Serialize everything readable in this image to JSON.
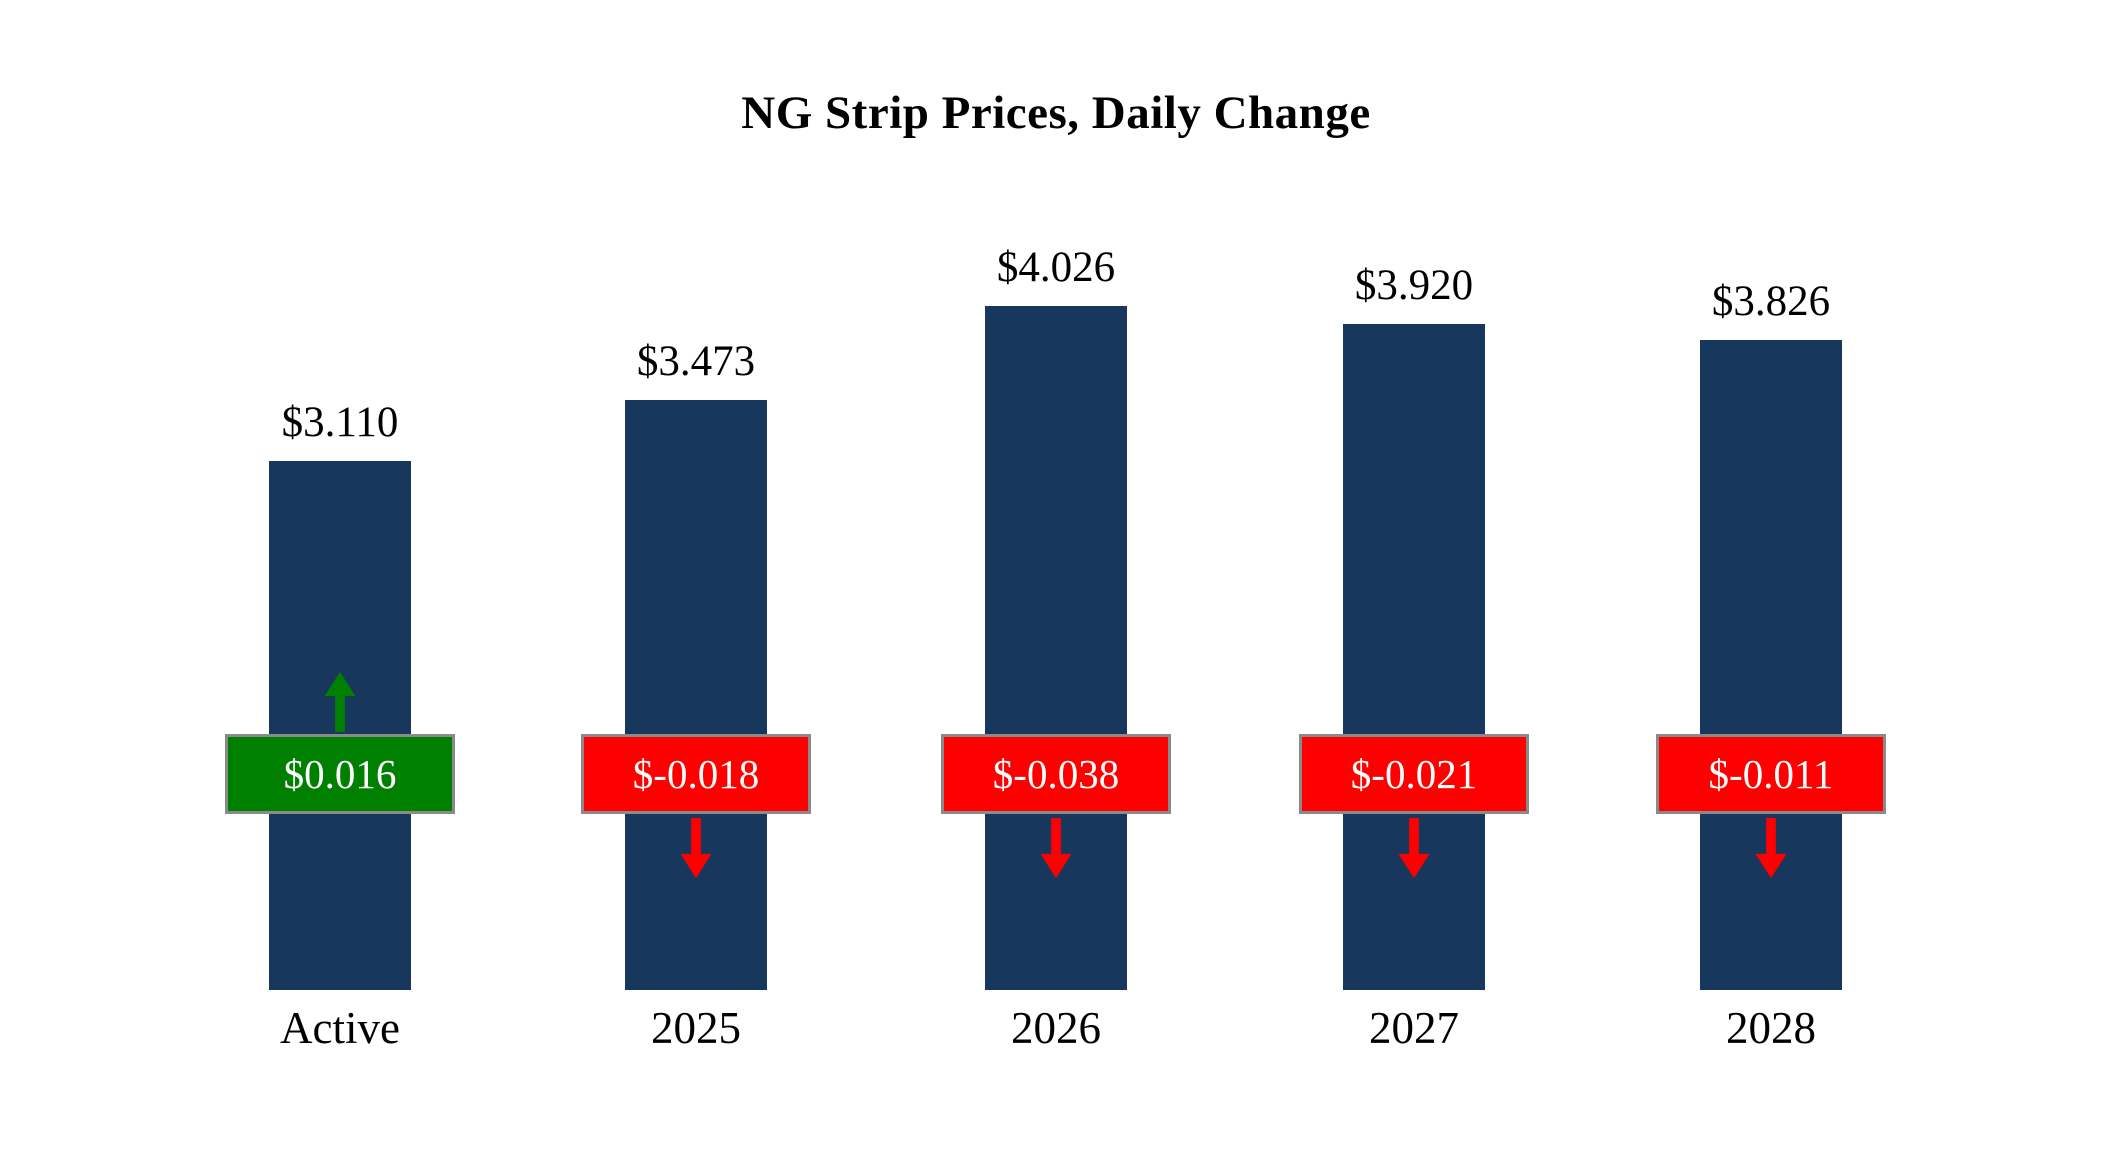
{
  "title": "NG Strip Prices, Daily Change",
  "chart_data": {
    "type": "bar",
    "title": "NG Strip Prices, Daily Change",
    "categories": [
      "Active",
      "2025",
      "2026",
      "2027",
      "2028"
    ],
    "series": [
      {
        "name": "Strip Price",
        "values": [
          3.11,
          3.473,
          4.026,
          3.92,
          3.826
        ]
      },
      {
        "name": "Daily Change",
        "values": [
          0.016,
          -0.018,
          -0.038,
          -0.021,
          -0.011
        ]
      }
    ],
    "bar_labels": [
      "$3.110",
      "$3.473",
      "$4.026",
      "$3.920",
      "$3.826"
    ],
    "change_labels": [
      "$0.016",
      "$-0.018",
      "$-0.038",
      "$-0.021",
      "$-0.011"
    ],
    "change_directions": [
      "up",
      "down",
      "down",
      "down",
      "down"
    ],
    "xlabel": "",
    "ylabel": "",
    "ylim": [
      0,
      4.026
    ],
    "grid": false,
    "legend": "none",
    "colors": {
      "bar": "#17375D",
      "up": "#008000",
      "down": "#FF0000",
      "badge_text": "#FFFFFF",
      "badge_border": "#8A8A8A"
    }
  }
}
